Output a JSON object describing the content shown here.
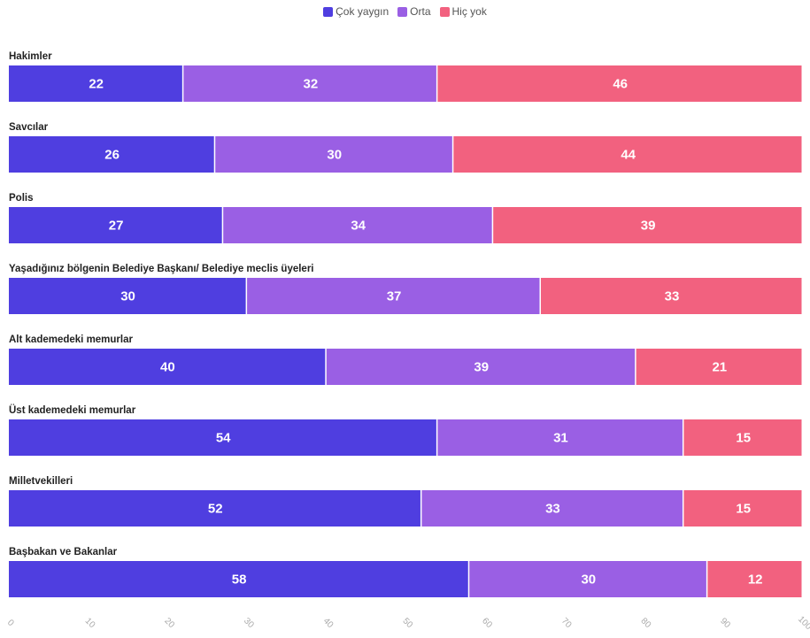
{
  "chart_data": {
    "type": "bar",
    "orientation": "horizontal",
    "stacked": true,
    "categories": [
      "Hakimler",
      "Savcılar",
      "Polis",
      "Yaşadığınız bölgenin Belediye Başkanı/ Belediye meclis üyeleri",
      "Alt kademedeki memurlar",
      "Üst kademedeki memurlar",
      "Milletvekilleri",
      "Başbakan ve Bakanlar"
    ],
    "series": [
      {
        "name": "Çok yaygın",
        "color": "#4f3ee0",
        "values": [
          22,
          26,
          27,
          30,
          40,
          54,
          52,
          58
        ]
      },
      {
        "name": "Orta",
        "color": "#9a5fe4",
        "values": [
          32,
          30,
          34,
          37,
          39,
          31,
          33,
          30
        ]
      },
      {
        "name": "Hiç yok",
        "color": "#f2617f",
        "values": [
          46,
          44,
          39,
          33,
          21,
          15,
          15,
          12
        ]
      }
    ],
    "xlim": [
      0,
      100
    ],
    "xticks": [
      "0",
      "10",
      "20",
      "30",
      "40",
      "50",
      "60",
      "70",
      "80",
      "90",
      "100"
    ],
    "legend_position": "top-center",
    "grid": false
  }
}
